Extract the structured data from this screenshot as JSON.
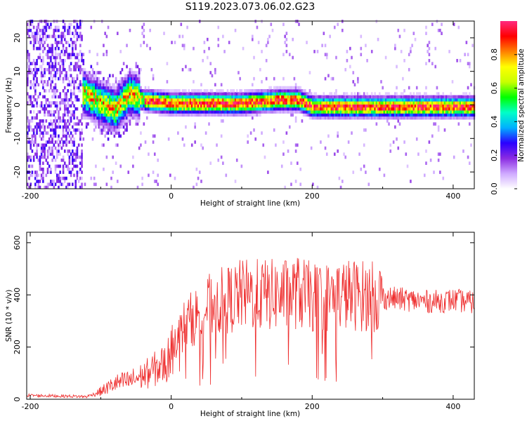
{
  "title": "S119.2023.073.06.02.G23",
  "chart_data": [
    {
      "type": "heatmap",
      "xlabel": "Height of straight line (km)",
      "ylabel": "Frequency (Hz)",
      "xlim": [
        -205,
        430
      ],
      "ylim": [
        -25,
        25
      ],
      "x_ticks": [
        -200,
        0,
        200,
        400
      ],
      "y_ticks": [
        -20,
        -10,
        0,
        10,
        20
      ],
      "colorbar": {
        "label": "Normalized spectral amplitude",
        "range": [
          0,
          1
        ],
        "ticks": [
          "0.0",
          "0.2",
          "0.4",
          "0.6",
          "0.8"
        ],
        "colors": [
          "#ffffff",
          "#cfa9ff",
          "#8a2be2",
          "#2a00ff",
          "#00b0ff",
          "#00ffc8",
          "#00ff00",
          "#c8ff00",
          "#ffff00",
          "#ff8000",
          "#ff0000",
          "#ff2a80"
        ]
      },
      "ridge": {
        "x": [
          -125,
          -100,
          -80,
          -60,
          -40,
          0,
          50,
          100,
          150,
          180,
          200,
          250,
          300,
          350,
          400,
          430
        ],
        "frequency": [
          3,
          0,
          -2,
          3,
          1,
          0,
          0,
          0,
          1,
          1,
          -1,
          -1,
          -1,
          -1,
          -1,
          -1
        ]
      }
    },
    {
      "type": "line",
      "xlabel": "Height of straight line (km)",
      "ylabel": "SNR (10 * v/v)",
      "xlim": [
        -205,
        430
      ],
      "ylim": [
        0,
        640
      ],
      "x_ticks": [
        -200,
        0,
        200,
        400
      ],
      "y_ticks": [
        0,
        200,
        400,
        600
      ],
      "series": [
        {
          "color": "#ee2a2a",
          "x": [
            -205,
            -150,
            -120,
            -100,
            -80,
            -60,
            -40,
            -20,
            -5,
            0,
            10,
            20,
            40,
            60,
            80,
            100,
            120,
            140,
            160,
            180,
            200,
            220,
            240,
            260,
            280,
            300,
            320,
            340,
            360,
            380,
            400,
            430
          ],
          "y": [
            15,
            12,
            10,
            30,
            60,
            70,
            90,
            120,
            140,
            230,
            240,
            290,
            330,
            370,
            380,
            400,
            400,
            400,
            400,
            410,
            390,
            390,
            400,
            400,
            395,
            390,
            385,
            380,
            375,
            375,
            380,
            370
          ]
        }
      ]
    }
  ]
}
